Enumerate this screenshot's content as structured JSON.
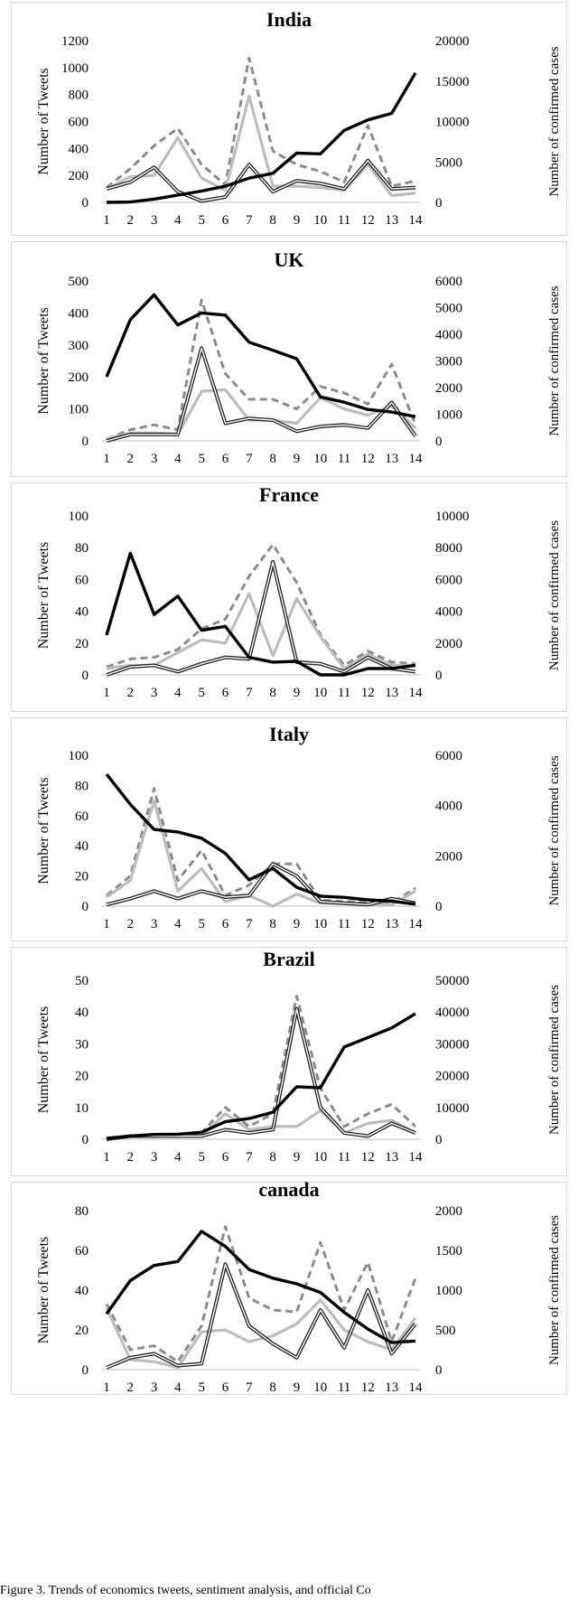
{
  "caption": "Figure 3. Trends of economics tweets, sentiment analysis, and official Co",
  "chart_data": [
    {
      "type": "line",
      "title": "India",
      "ylabel": "Number of Tweets",
      "y2label": "Number of confirmed cases",
      "x": [
        1,
        2,
        3,
        4,
        5,
        6,
        7,
        8,
        9,
        10,
        11,
        12,
        13,
        14
      ],
      "ylim": [
        0,
        1200
      ],
      "yticks": [
        0,
        200,
        400,
        600,
        800,
        1000,
        1200
      ],
      "y2lim": [
        0,
        20000
      ],
      "y2ticks": [
        0,
        5000,
        10000,
        15000,
        20000
      ],
      "series": [
        {
          "style": "dashed-gray",
          "axis": "left",
          "values": [
            110,
            250,
            420,
            550,
            280,
            130,
            1070,
            380,
            280,
            230,
            150,
            570,
            120,
            160
          ]
        },
        {
          "style": "gray",
          "axis": "left",
          "values": [
            100,
            190,
            200,
            480,
            180,
            90,
            790,
            120,
            120,
            110,
            90,
            280,
            50,
            70
          ]
        },
        {
          "style": "double",
          "axis": "left",
          "values": [
            100,
            150,
            260,
            80,
            10,
            40,
            280,
            80,
            160,
            140,
            100,
            310,
            100,
            110
          ]
        },
        {
          "style": "black",
          "axis": "right",
          "values": [
            0,
            50,
            400,
            900,
            1400,
            2000,
            3000,
            3600,
            6100,
            6000,
            8900,
            10200,
            11000,
            16000
          ]
        }
      ]
    },
    {
      "type": "line",
      "title": "UK",
      "ylabel": "Number of Tweets",
      "y2label": "Number of confirmed cases",
      "x": [
        1,
        2,
        3,
        4,
        5,
        6,
        7,
        8,
        9,
        10,
        11,
        12,
        13,
        14
      ],
      "ylim": [
        0,
        500
      ],
      "yticks": [
        0,
        100,
        200,
        300,
        400,
        500
      ],
      "y2lim": [
        0,
        6000
      ],
      "y2ticks": [
        0,
        1000,
        2000,
        3000,
        4000,
        5000,
        6000
      ],
      "series": [
        {
          "style": "dashed-gray",
          "axis": "left",
          "values": [
            5,
            35,
            50,
            35,
            440,
            210,
            130,
            130,
            100,
            170,
            150,
            115,
            240,
            50
          ]
        },
        {
          "style": "gray",
          "axis": "left",
          "values": [
            5,
            25,
            25,
            20,
            155,
            160,
            65,
            65,
            55,
            135,
            100,
            80,
            110,
            40
          ]
        },
        {
          "style": "double",
          "axis": "left",
          "values": [
            0,
            20,
            20,
            20,
            290,
            55,
            70,
            65,
            30,
            45,
            50,
            40,
            120,
            15
          ]
        },
        {
          "style": "black",
          "axis": "right",
          "values": [
            2400,
            4550,
            5480,
            4350,
            4800,
            4720,
            3700,
            3400,
            3080,
            1650,
            1450,
            1180,
            1080,
            910
          ]
        }
      ]
    },
    {
      "type": "line",
      "title": "France",
      "ylabel": "Number of Tweets",
      "y2label": "Number of confirmed cases",
      "x": [
        1,
        2,
        3,
        4,
        5,
        6,
        7,
        8,
        9,
        10,
        11,
        12,
        13,
        14
      ],
      "ylim": [
        0,
        100
      ],
      "yticks": [
        0,
        20,
        40,
        60,
        80,
        100
      ],
      "y2lim": [
        0,
        10000
      ],
      "y2ticks": [
        0,
        2000,
        4000,
        6000,
        8000,
        10000
      ],
      "series": [
        {
          "style": "dashed-gray",
          "axis": "left",
          "values": [
            5,
            10,
            11,
            16,
            29,
            35,
            62,
            82,
            58,
            25,
            6,
            15,
            8,
            7
          ]
        },
        {
          "style": "gray",
          "axis": "left",
          "values": [
            4,
            6,
            6,
            14,
            22,
            20,
            51,
            12,
            48,
            24,
            4,
            13,
            6,
            6
          ]
        },
        {
          "style": "double",
          "axis": "left",
          "values": [
            0,
            5,
            6,
            2,
            7,
            11,
            10,
            71,
            8,
            7,
            2,
            11,
            4,
            2
          ]
        },
        {
          "style": "black",
          "axis": "right",
          "values": [
            2500,
            7650,
            3800,
            4950,
            2800,
            3050,
            1100,
            800,
            850,
            0,
            0,
            400,
            400,
            600
          ]
        }
      ]
    },
    {
      "type": "line",
      "title": "Italy",
      "ylabel": "Number of Tweets",
      "y2label": "Number of confirmed cases",
      "x": [
        1,
        2,
        3,
        4,
        5,
        6,
        7,
        8,
        9,
        10,
        11,
        12,
        13,
        14
      ],
      "ylim": [
        0,
        100
      ],
      "yticks": [
        0,
        20,
        40,
        60,
        80,
        100
      ],
      "y2lim": [
        0,
        6000
      ],
      "y2ticks": [
        0,
        2000,
        4000,
        6000
      ],
      "series": [
        {
          "style": "dashed-gray",
          "axis": "left",
          "values": [
            7,
            20,
            78,
            17,
            37,
            7,
            14,
            28,
            28,
            4,
            3,
            3,
            2,
            12
          ]
        },
        {
          "style": "gray",
          "axis": "left",
          "values": [
            6,
            17,
            70,
            10,
            25,
            3,
            7,
            0,
            8,
            2,
            2,
            1,
            1,
            10
          ]
        },
        {
          "style": "double",
          "axis": "left",
          "values": [
            1,
            5,
            10,
            5,
            10,
            6,
            7,
            28,
            20,
            3,
            2,
            1,
            5,
            2
          ]
        },
        {
          "style": "black",
          "axis": "right",
          "values": [
            5250,
            4050,
            3050,
            2950,
            2700,
            2100,
            1050,
            1500,
            750,
            400,
            350,
            250,
            200,
            80
          ]
        }
      ]
    },
    {
      "type": "line",
      "title": "Brazil",
      "ylabel": "Number of Tweets",
      "y2label": "Number of confirmed cases",
      "x": [
        1,
        2,
        3,
        4,
        5,
        6,
        7,
        8,
        9,
        10,
        11,
        12,
        13,
        14
      ],
      "ylim": [
        0,
        50
      ],
      "yticks": [
        0,
        10,
        20,
        30,
        40,
        50
      ],
      "y2lim": [
        0,
        50000
      ],
      "y2ticks": [
        0,
        10000,
        20000,
        30000,
        40000,
        50000
      ],
      "series": [
        {
          "style": "dashed-gray",
          "axis": "left",
          "values": [
            0,
            1,
            1,
            1,
            2,
            10,
            4,
            8,
            45,
            16,
            4,
            8,
            11,
            4
          ]
        },
        {
          "style": "gray",
          "axis": "left",
          "values": [
            0,
            1,
            1,
            1,
            1,
            8,
            3,
            4,
            4,
            9,
            2,
            5,
            6,
            2
          ]
        },
        {
          "style": "double",
          "axis": "left",
          "values": [
            0,
            1,
            1,
            1,
            1,
            3,
            2,
            3,
            41,
            10,
            2,
            1,
            5,
            2
          ]
        },
        {
          "style": "black",
          "axis": "right",
          "values": [
            300,
            1000,
            1500,
            1600,
            2200,
            5500,
            6500,
            8500,
            16500,
            16200,
            29000,
            32000,
            35000,
            39500
          ]
        }
      ]
    },
    {
      "type": "line",
      "title": "canada",
      "ylabel": "Number of Tweets",
      "y2label": "Number of confirmed cases",
      "x": [
        1,
        2,
        3,
        4,
        5,
        6,
        7,
        8,
        9,
        10,
        11,
        12,
        13,
        14
      ],
      "ylim": [
        0,
        80
      ],
      "yticks": [
        0,
        20,
        40,
        60,
        80
      ],
      "y2lim": [
        0,
        2000
      ],
      "y2ticks": [
        0,
        500,
        1000,
        1500,
        2000
      ],
      "series": [
        {
          "style": "dashed-gray",
          "axis": "left",
          "values": [
            33,
            10,
            12,
            4,
            22,
            72,
            36,
            30,
            29,
            64,
            30,
            54,
            14,
            46
          ]
        },
        {
          "style": "gray",
          "axis": "left",
          "values": [
            31,
            5,
            4,
            1,
            19,
            20,
            14,
            17,
            23,
            35,
            20,
            14,
            10,
            26
          ]
        },
        {
          "style": "double",
          "axis": "left",
          "values": [
            1,
            6,
            8,
            2,
            3,
            53,
            22,
            13,
            6,
            30,
            11,
            40,
            8,
            23
          ]
        },
        {
          "style": "black",
          "axis": "right",
          "values": [
            700,
            1120,
            1310,
            1360,
            1740,
            1550,
            1260,
            1150,
            1080,
            970,
            720,
            510,
            340,
            360
          ]
        }
      ]
    }
  ]
}
